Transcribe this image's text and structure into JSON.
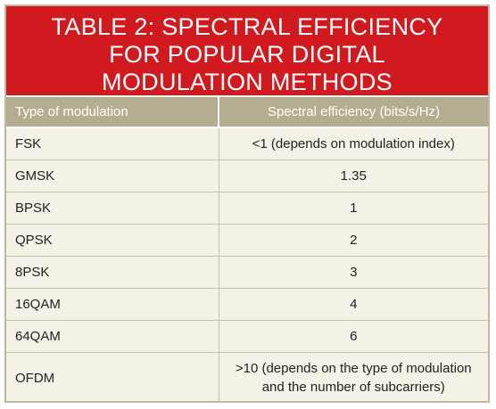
{
  "title": {
    "line1": "TABLE 2: SPECTRAL EFFICIENCY",
    "line2": "FOR POPULAR DIGITAL",
    "line3": "MODULATION METHODS"
  },
  "table": {
    "headers": [
      "Type of modulation",
      "Spectral efficiency (bits/s/Hz)"
    ],
    "rows": [
      {
        "type": "FSK",
        "value": "<1 (depends on modulation index)"
      },
      {
        "type": "GMSK",
        "value": "1.35"
      },
      {
        "type": "BPSK",
        "value": "1"
      },
      {
        "type": "QPSK",
        "value": "2"
      },
      {
        "type": "8PSK",
        "value": "3"
      },
      {
        "type": "16QAM",
        "value": "4"
      },
      {
        "type": "64QAM",
        "value": "6"
      },
      {
        "type": "OFDM",
        "value_line1": ">10 (depends on the type of modulation",
        "value_line2": "and the number of subcarriers)"
      }
    ]
  },
  "colors": {
    "title_background": "#d01a1f",
    "header_background": "#b5ad8f",
    "body_background": "#f4f2e6"
  }
}
